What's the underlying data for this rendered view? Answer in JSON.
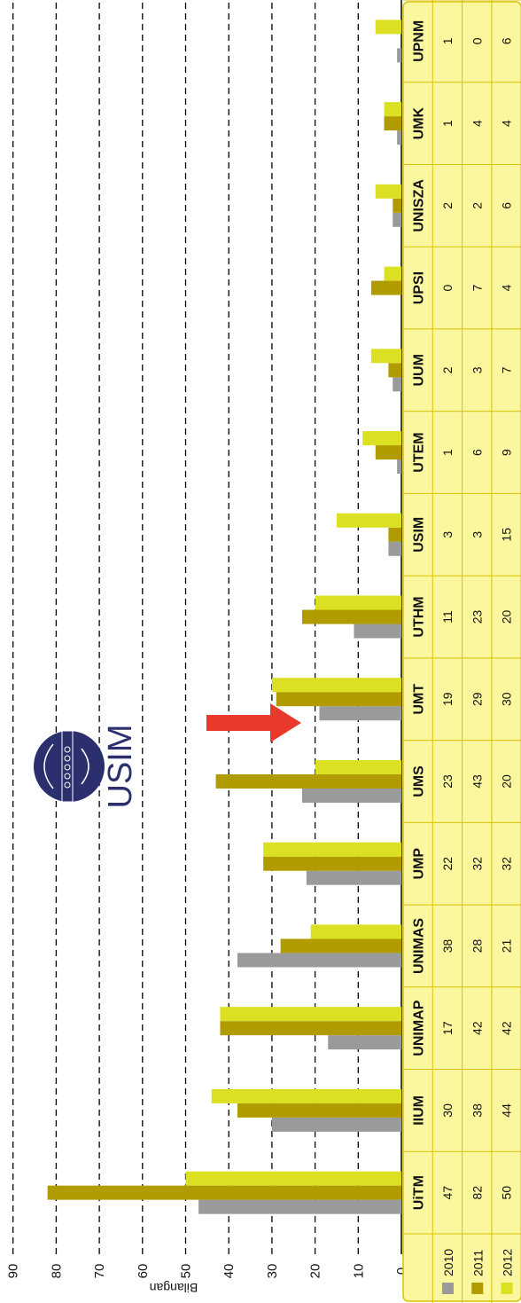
{
  "chart_data": {
    "type": "bar",
    "ylabel": "Bilangan",
    "ylim": [
      0,
      90
    ],
    "yticks": [
      0,
      10,
      20,
      30,
      40,
      50,
      60,
      70,
      80,
      90
    ],
    "grid": "dashed horizontal",
    "categories": [
      "UiTM",
      "IIUM",
      "UNIMAP",
      "UNIMAS",
      "UMP",
      "UMS",
      "UMT",
      "UTHM",
      "USIM",
      "UTEM",
      "UUM",
      "UPSI",
      "UNISZA",
      "UMK",
      "UPNM"
    ],
    "series": [
      {
        "name": "2010",
        "color": "#9a9a9a",
        "values": [
          47,
          30,
          17,
          38,
          22,
          23,
          19,
          11,
          3,
          1,
          2,
          0,
          2,
          1,
          1
        ]
      },
      {
        "name": "2011",
        "color": "#b09c00",
        "values": [
          82,
          38,
          42,
          28,
          32,
          43,
          29,
          23,
          3,
          6,
          3,
          7,
          2,
          4,
          0
        ]
      },
      {
        "name": "2012",
        "color": "#dbe022",
        "values": [
          50,
          44,
          42,
          21,
          32,
          20,
          30,
          20,
          15,
          9,
          7,
          4,
          6,
          4,
          6
        ]
      }
    ],
    "data_table": true,
    "annotation": {
      "logo_text": "USIM",
      "arrow_target": "USIM"
    }
  }
}
